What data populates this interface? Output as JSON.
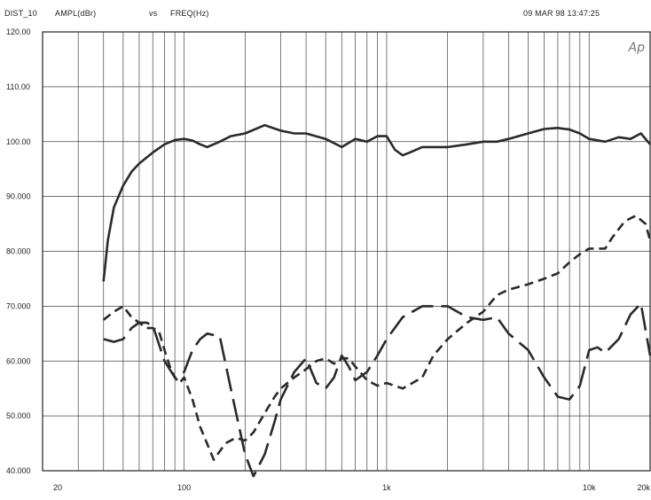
{
  "header": {
    "dataset": "DIST_10",
    "y_quantity": "AMPL(dBr)",
    "vs": "vs",
    "x_quantity": "FREQ(Hz)",
    "timestamp": "09 MAR 98 13:47:25"
  },
  "logo_text": "Ap",
  "chart_data": {
    "type": "line",
    "x_scale": "log",
    "xlim": [
      20,
      20000
    ],
    "ylim": [
      40,
      120
    ],
    "grid": true,
    "legend": "none",
    "xlabel": "FREQ(Hz)",
    "ylabel": "AMPL(dBr)",
    "x_tick_labels": [
      {
        "value": 20,
        "label": "20"
      },
      {
        "value": 100,
        "label": "100"
      },
      {
        "value": 1000,
        "label": "1k"
      },
      {
        "value": 10000,
        "label": "10k"
      },
      {
        "value": 20000,
        "label": "20k"
      }
    ],
    "y_tick_labels": [
      {
        "value": 120,
        "label": "120.00"
      },
      {
        "value": 110,
        "label": "110.00"
      },
      {
        "value": 100,
        "label": "100.00"
      },
      {
        "value": 90,
        "label": "90.000"
      },
      {
        "value": 80,
        "label": "80.000"
      },
      {
        "value": 70,
        "label": "70.000"
      },
      {
        "value": 60,
        "label": "60.000"
      },
      {
        "value": 50,
        "label": "50.000"
      },
      {
        "value": 40,
        "label": "40.000"
      }
    ],
    "series": [
      {
        "style": "solid",
        "color": "#2a2a2a",
        "x": [
          40,
          42,
          45,
          50,
          55,
          60,
          70,
          80,
          90,
          100,
          110,
          120,
          130,
          150,
          170,
          200,
          250,
          300,
          350,
          400,
          500,
          600,
          700,
          800,
          900,
          1000,
          1100,
          1200,
          1300,
          1500,
          2000,
          2500,
          3000,
          3500,
          4000,
          5000,
          6000,
          7000,
          8000,
          9000,
          10000,
          12000,
          14000,
          16000,
          18000,
          20000
        ],
        "y": [
          74.5,
          82,
          88,
          92,
          94.5,
          96,
          98,
          99.5,
          100.3,
          100.5,
          100.2,
          99.5,
          99,
          100,
          101,
          101.5,
          103,
          102,
          101.5,
          101.5,
          100.5,
          99,
          100.5,
          100,
          101,
          101,
          98.5,
          97.5,
          98,
          99,
          99,
          99.5,
          100,
          100,
          100.5,
          101.5,
          102.3,
          102.5,
          102.2,
          101.5,
          100.5,
          100,
          100.8,
          100.5,
          101.5,
          99.5
        ]
      },
      {
        "style": "dashed",
        "color": "#2a2a2a",
        "x": [
          40,
          45,
          50,
          55,
          60,
          65,
          70,
          75,
          80,
          85,
          90,
          95,
          100,
          110,
          120,
          140,
          160,
          180,
          200,
          220,
          250,
          280,
          300,
          350,
          400,
          450,
          500,
          550,
          600,
          650,
          700,
          800,
          900,
          1000,
          1200,
          1500,
          1700,
          2000,
          2500,
          3000,
          3500,
          4000,
          5000,
          6000,
          7000,
          8000,
          9000,
          10000,
          11000,
          12000,
          13000,
          15000,
          17000,
          19000,
          20000
        ],
        "y": [
          67.5,
          69,
          70,
          68,
          67,
          66,
          66,
          65.5,
          62,
          59,
          57,
          56,
          57,
          53,
          48,
          42,
          45,
          46,
          45.5,
          47,
          50.5,
          53.5,
          55,
          57,
          58.5,
          60,
          60.5,
          59.5,
          60.5,
          60.5,
          59,
          56.5,
          55.5,
          56,
          55,
          57,
          61,
          64,
          67,
          69,
          72,
          73,
          74,
          75,
          76,
          78,
          79.5,
          80.5,
          80.5,
          80.5,
          82.5,
          85.5,
          86.5,
          85,
          82
        ]
      },
      {
        "style": "longdash",
        "color": "#2a2a2a",
        "x": [
          40,
          45,
          50,
          55,
          60,
          65,
          70,
          80,
          90,
          100,
          110,
          120,
          130,
          150,
          170,
          200,
          220,
          250,
          280,
          300,
          350,
          400,
          450,
          500,
          550,
          600,
          650,
          700,
          800,
          900,
          1000,
          1200,
          1500,
          1700,
          2000,
          2500,
          3000,
          3500,
          4000,
          5000,
          6000,
          7000,
          8000,
          9000,
          10000,
          11000,
          12000,
          14000,
          16000,
          18000,
          20000
        ],
        "y": [
          64,
          63.5,
          64,
          66,
          67,
          67,
          66.5,
          60,
          57,
          58,
          62,
          64,
          65,
          64.5,
          55,
          43,
          39,
          43,
          49,
          53,
          58,
          60.5,
          56,
          55,
          57,
          61,
          59,
          56.5,
          58,
          61,
          64,
          68,
          70,
          70,
          70,
          68,
          67.5,
          68,
          65,
          62,
          57,
          53.5,
          53,
          55.5,
          62,
          62.5,
          61.5,
          64,
          68.5,
          70.5,
          61
        ]
      }
    ]
  }
}
